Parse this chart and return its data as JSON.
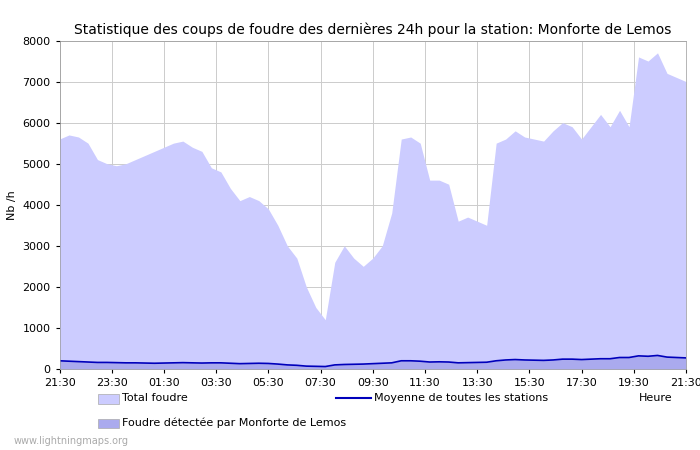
{
  "title": "Statistique des coups de foudre des dernières 24h pour la station: Monforte de Lemos",
  "ylabel": "Nb /h",
  "xlabel_right": "Heure",
  "watermark": "www.lightningmaps.org",
  "ylim": [
    0,
    8000
  ],
  "yticks": [
    0,
    1000,
    2000,
    3000,
    4000,
    5000,
    6000,
    7000,
    8000
  ],
  "x_labels": [
    "21:30",
    "23:30",
    "01:30",
    "03:30",
    "05:30",
    "07:30",
    "09:30",
    "11:30",
    "13:30",
    "15:30",
    "17:30",
    "19:30",
    "21:30"
  ],
  "total_foudre_color": "#ccccff",
  "detected_color": "#aaaaee",
  "mean_color": "#0000bb",
  "background_color": "#ffffff",
  "grid_color": "#cccccc",
  "total_foudre_y": [
    5600,
    5700,
    5650,
    5500,
    5100,
    5000,
    4950,
    5000,
    5100,
    5200,
    5300,
    5400,
    5500,
    5550,
    5400,
    5300,
    4900,
    4800,
    4400,
    4100,
    4200,
    4100,
    3900,
    3500,
    3000,
    2700,
    2000,
    1500,
    1200,
    2600,
    3000,
    2700,
    2500,
    2700,
    3000,
    3800,
    5600,
    5650,
    5500,
    4600,
    4600,
    4500,
    3600,
    3700,
    3600,
    3500,
    5500,
    5600,
    5800,
    5650,
    5600,
    5550,
    5800,
    6000,
    5900,
    5600,
    5900,
    6200,
    5900,
    6300,
    5900,
    7600,
    7500,
    7700,
    7200,
    7100,
    7000
  ],
  "detected_y": [
    200,
    190,
    180,
    170,
    160,
    160,
    155,
    150,
    150,
    145,
    140,
    145,
    150,
    155,
    150,
    145,
    150,
    150,
    140,
    130,
    135,
    140,
    135,
    120,
    100,
    90,
    70,
    65,
    60,
    100,
    110,
    115,
    120,
    130,
    140,
    150,
    200,
    200,
    190,
    170,
    175,
    170,
    150,
    155,
    160,
    165,
    200,
    220,
    230,
    220,
    215,
    210,
    220,
    240,
    240,
    230,
    240,
    250,
    250,
    280,
    280,
    320,
    310,
    330,
    290,
    280,
    270
  ],
  "mean_y": [
    200,
    190,
    180,
    170,
    160,
    160,
    155,
    150,
    150,
    145,
    140,
    145,
    150,
    155,
    150,
    145,
    150,
    150,
    140,
    130,
    135,
    140,
    135,
    120,
    100,
    90,
    70,
    65,
    60,
    100,
    110,
    115,
    120,
    130,
    140,
    150,
    200,
    200,
    190,
    170,
    175,
    170,
    150,
    155,
    160,
    165,
    200,
    220,
    230,
    220,
    215,
    210,
    220,
    240,
    240,
    230,
    240,
    250,
    250,
    280,
    280,
    320,
    310,
    330,
    290,
    280,
    270
  ],
  "legend_total": "Total foudre",
  "legend_mean": "Moyenne de toutes les stations",
  "legend_detected": "Foudre détectée par Monforte de Lemos",
  "title_fontsize": 10,
  "axis_fontsize": 8,
  "tick_fontsize": 8
}
